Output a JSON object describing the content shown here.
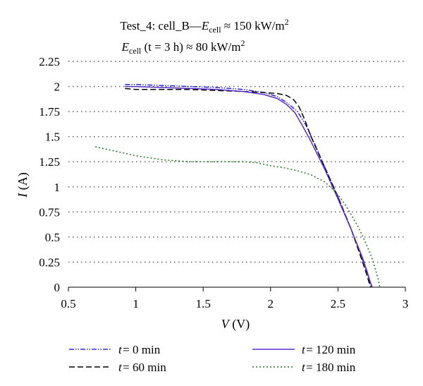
{
  "chart_data": {
    "type": "line",
    "title_lines": [
      {
        "pre": "Test_4: cell_B—",
        "var": "E",
        "sub": "cell",
        "post": " ≈ 150 kW/m",
        "sup": "2"
      },
      {
        "pre": "",
        "var": "E",
        "sub": "cell",
        "post": " (t = 3 h) ≈ 80 kW/m",
        "sup": "2"
      }
    ],
    "xlabel": {
      "var": "V",
      "unit": " (V)"
    },
    "ylabel": {
      "var": "I",
      "unit": " (A)"
    },
    "xlim": [
      0.5,
      3
    ],
    "ylim": [
      0,
      2.25
    ],
    "xticks": [
      "0.5",
      "1",
      "1.5",
      "2",
      "2.5",
      "3"
    ],
    "yticks": [
      "0",
      "0.25",
      "0.5",
      "0.75",
      "1",
      "1.25",
      "1.5",
      "1.75",
      "2",
      "2.25"
    ],
    "grid": "horizontal dotted",
    "legend_position": "bottom",
    "series": [
      {
        "name": "t = 0 min",
        "color": "#2a2ad4",
        "dash": "7,2,1.5,2,1.5,2",
        "x": [
          0.92,
          1.0,
          1.2,
          1.4,
          1.6,
          1.8,
          1.95,
          2.05,
          2.13,
          2.2,
          2.26,
          2.32,
          2.4,
          2.5,
          2.6,
          2.68,
          2.72,
          2.735,
          2.745
        ],
        "y": [
          2.02,
          2.02,
          2.01,
          2.0,
          1.99,
          1.97,
          1.94,
          1.9,
          1.83,
          1.75,
          1.62,
          1.45,
          1.2,
          0.9,
          0.57,
          0.28,
          0.12,
          0.05,
          0.0
        ]
      },
      {
        "name": "t = 60 min",
        "color": "#000000",
        "dash": "8,4",
        "x": [
          0.92,
          1.0,
          1.2,
          1.4,
          1.6,
          1.8,
          1.95,
          2.05,
          2.12,
          2.17,
          2.21,
          2.25,
          2.3,
          2.4,
          2.5,
          2.6,
          2.67,
          2.71,
          2.73,
          2.745
        ],
        "y": [
          1.98,
          1.97,
          1.97,
          1.97,
          1.96,
          1.95,
          1.94,
          1.93,
          1.91,
          1.87,
          1.8,
          1.68,
          1.5,
          1.2,
          0.9,
          0.57,
          0.3,
          0.14,
          0.05,
          0.0
        ]
      },
      {
        "name": "t = 120 min",
        "color": "#5a2dc8",
        "dash": "",
        "x": [
          0.92,
          1.0,
          1.2,
          1.4,
          1.6,
          1.8,
          1.95,
          2.05,
          2.12,
          2.18,
          2.24,
          2.3,
          2.4,
          2.5,
          2.6,
          2.68,
          2.72,
          2.74,
          2.755
        ],
        "y": [
          2.0,
          2.0,
          1.99,
          1.98,
          1.97,
          1.95,
          1.92,
          1.88,
          1.82,
          1.74,
          1.6,
          1.45,
          1.18,
          0.88,
          0.57,
          0.3,
          0.14,
          0.05,
          0.0
        ]
      },
      {
        "name": "t = 180 min",
        "color": "#1e7a1e",
        "dash": "2,3",
        "x": [
          0.7,
          0.8,
          0.9,
          1.0,
          1.2,
          1.4,
          1.6,
          1.8,
          1.9,
          2.0,
          2.1,
          2.2,
          2.3,
          2.4,
          2.45,
          2.5,
          2.55,
          2.6,
          2.65,
          2.7,
          2.75,
          2.78,
          2.8,
          2.81
        ],
        "y": [
          1.4,
          1.37,
          1.34,
          1.31,
          1.27,
          1.25,
          1.25,
          1.25,
          1.24,
          1.21,
          1.19,
          1.16,
          1.12,
          1.05,
          0.99,
          0.92,
          0.83,
          0.72,
          0.6,
          0.46,
          0.3,
          0.17,
          0.07,
          0.0
        ]
      }
    ]
  }
}
